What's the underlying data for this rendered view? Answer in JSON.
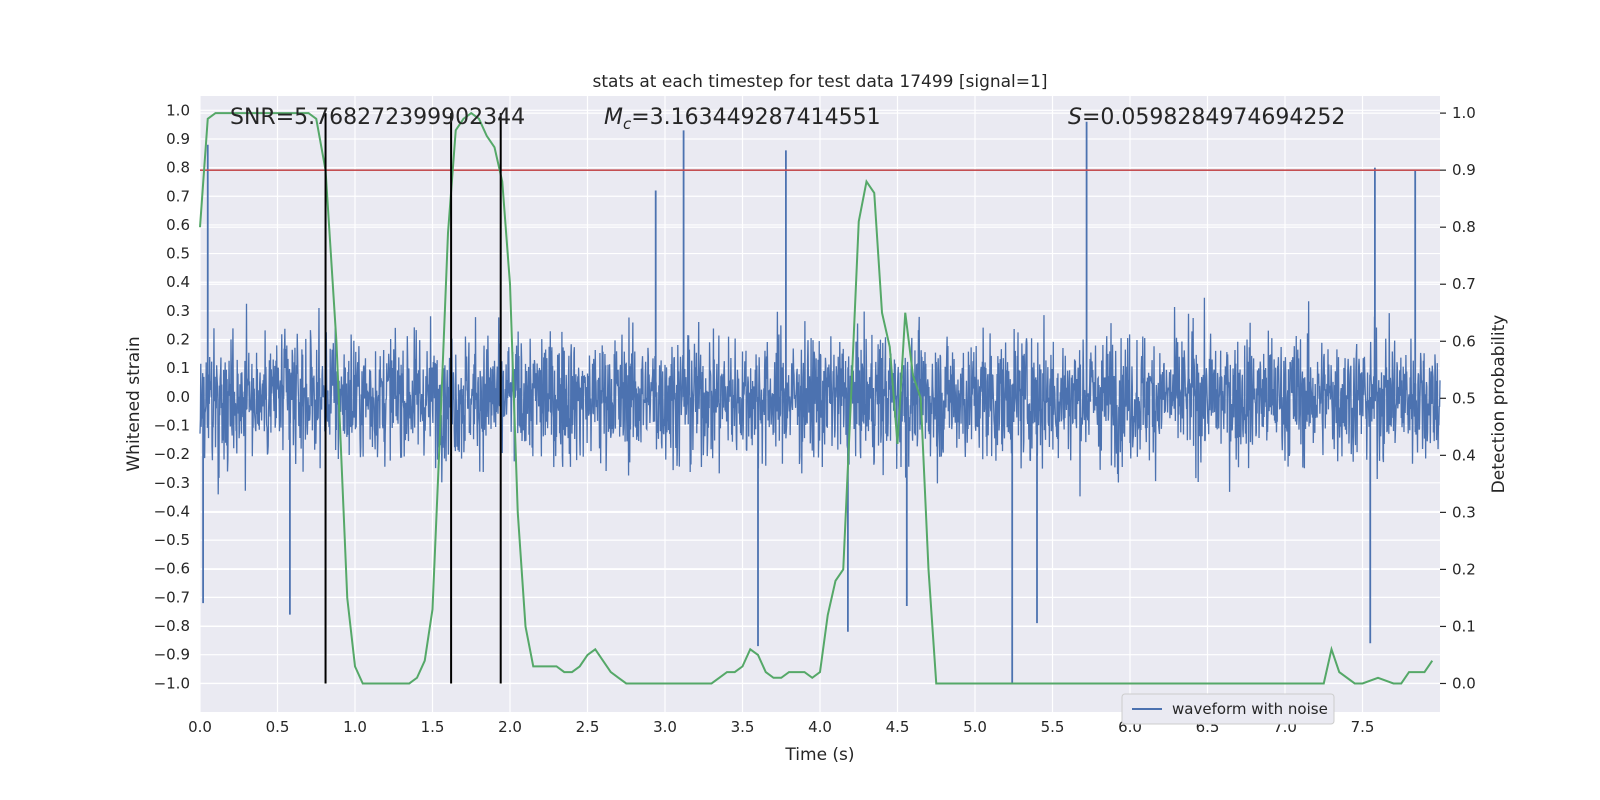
{
  "chart_data": {
    "type": "line",
    "title": "stats at each timestep for test data 17499 [signal=1]",
    "xlabel": "Time (s)",
    "ylabel_left": "Whitened strain",
    "ylabel_right": "Detection probability",
    "xlim": [
      0.0,
      8.0
    ],
    "ylim_left": [
      -1.1,
      1.05
    ],
    "ylim_right": [
      -0.05,
      1.03
    ],
    "x_ticks": [
      "0.0",
      "0.5",
      "1.0",
      "1.5",
      "2.0",
      "2.5",
      "3.0",
      "3.5",
      "4.0",
      "4.5",
      "5.0",
      "5.5",
      "6.0",
      "6.5",
      "7.0",
      "7.5"
    ],
    "y_ticks_left": [
      "1.0",
      "0.9",
      "0.8",
      "0.7",
      "0.6",
      "0.5",
      "0.4",
      "0.3",
      "0.2",
      "0.1",
      "0.0",
      "-0.1",
      "-0.2",
      "-0.3",
      "-0.4",
      "-0.5",
      "-0.6",
      "-0.7",
      "-0.8",
      "-0.9",
      "-1.0"
    ],
    "y_ticks_right": [
      "1.0",
      "0.9",
      "0.8",
      "0.7",
      "0.6",
      "0.5",
      "0.4",
      "0.3",
      "0.2",
      "0.1",
      "0.0"
    ],
    "grid": true,
    "legend_position": "bottom-right",
    "stats": {
      "snr": "SNR=5.768272399902344",
      "mc_symbol": "M",
      "mc_sub": "c",
      "mc_value": "=3.163449287414551",
      "s_symbol": "S",
      "s_value": "=0.0598284974694252"
    },
    "threshold": {
      "value": 0.9,
      "axis": "right",
      "color": "#c44e52"
    },
    "vertical_markers": {
      "x": [
        0.81,
        1.62,
        1.94
      ],
      "color": "#000000"
    },
    "series": [
      {
        "name": "waveform with noise",
        "axis": "left",
        "color": "#4c72b0",
        "kind": "noisy-waveform",
        "typical_envelope": [
          -0.45,
          0.4
        ],
        "spikes": [
          {
            "x": 0.02,
            "y": -0.72
          },
          {
            "x": 0.05,
            "y": 0.88
          },
          {
            "x": 0.58,
            "y": -0.76
          },
          {
            "x": 2.94,
            "y": 0.72
          },
          {
            "x": 3.12,
            "y": 0.93
          },
          {
            "x": 3.6,
            "y": -0.87
          },
          {
            "x": 3.78,
            "y": 0.86
          },
          {
            "x": 4.18,
            "y": -0.82
          },
          {
            "x": 4.56,
            "y": -0.73
          },
          {
            "x": 5.24,
            "y": -1.0
          },
          {
            "x": 5.4,
            "y": -0.79
          },
          {
            "x": 5.72,
            "y": 0.96
          },
          {
            "x": 7.55,
            "y": -0.86
          },
          {
            "x": 7.58,
            "y": 0.8
          },
          {
            "x": 7.84,
            "y": 0.79
          }
        ]
      },
      {
        "name": "",
        "axis": "right",
        "color": "#55a868",
        "x": [
          0.0,
          0.05,
          0.1,
          0.2,
          0.3,
          0.4,
          0.5,
          0.6,
          0.7,
          0.75,
          0.81,
          0.88,
          0.95,
          1.0,
          1.05,
          1.1,
          1.2,
          1.3,
          1.35,
          1.4,
          1.45,
          1.5,
          1.55,
          1.6,
          1.65,
          1.7,
          1.75,
          1.8,
          1.85,
          1.9,
          1.95,
          2.0,
          2.05,
          2.1,
          2.15,
          2.2,
          2.25,
          2.3,
          2.35,
          2.4,
          2.45,
          2.5,
          2.55,
          2.6,
          2.65,
          2.7,
          2.75,
          2.8,
          2.9,
          3.0,
          3.1,
          3.2,
          3.3,
          3.35,
          3.4,
          3.45,
          3.5,
          3.55,
          3.6,
          3.65,
          3.7,
          3.75,
          3.8,
          3.85,
          3.9,
          3.95,
          4.0,
          4.05,
          4.1,
          4.15,
          4.2,
          4.25,
          4.3,
          4.35,
          4.4,
          4.45,
          4.5,
          4.55,
          4.6,
          4.65,
          4.7,
          4.75,
          4.8,
          4.9,
          5.0,
          5.5,
          5.8,
          6.0,
          6.5,
          7.0,
          7.2,
          7.25,
          7.3,
          7.35,
          7.45,
          7.5,
          7.6,
          7.7,
          7.75,
          7.8,
          7.9,
          7.95
        ],
        "values": [
          0.8,
          0.99,
          1.0,
          1.0,
          1.0,
          1.0,
          1.0,
          1.0,
          1.0,
          0.99,
          0.9,
          0.6,
          0.15,
          0.03,
          0.0,
          0.0,
          0.0,
          0.0,
          0.0,
          0.01,
          0.04,
          0.13,
          0.45,
          0.79,
          0.97,
          0.99,
          1.0,
          0.99,
          0.96,
          0.94,
          0.88,
          0.7,
          0.3,
          0.1,
          0.03,
          0.03,
          0.03,
          0.03,
          0.02,
          0.02,
          0.03,
          0.05,
          0.06,
          0.04,
          0.02,
          0.01,
          0.0,
          0.0,
          0.0,
          0.0,
          0.0,
          0.0,
          0.0,
          0.01,
          0.02,
          0.02,
          0.03,
          0.06,
          0.05,
          0.02,
          0.01,
          0.01,
          0.02,
          0.02,
          0.02,
          0.01,
          0.02,
          0.12,
          0.18,
          0.2,
          0.5,
          0.81,
          0.88,
          0.86,
          0.65,
          0.59,
          0.42,
          0.65,
          0.54,
          0.5,
          0.2,
          0.0,
          0.0,
          0.0,
          0.0,
          0.0,
          0.0,
          0.0,
          0.0,
          0.0,
          0.0,
          0.0,
          0.06,
          0.02,
          0.0,
          0.0,
          0.01,
          0.0,
          0.0,
          0.02,
          0.02,
          0.04
        ]
      }
    ]
  }
}
